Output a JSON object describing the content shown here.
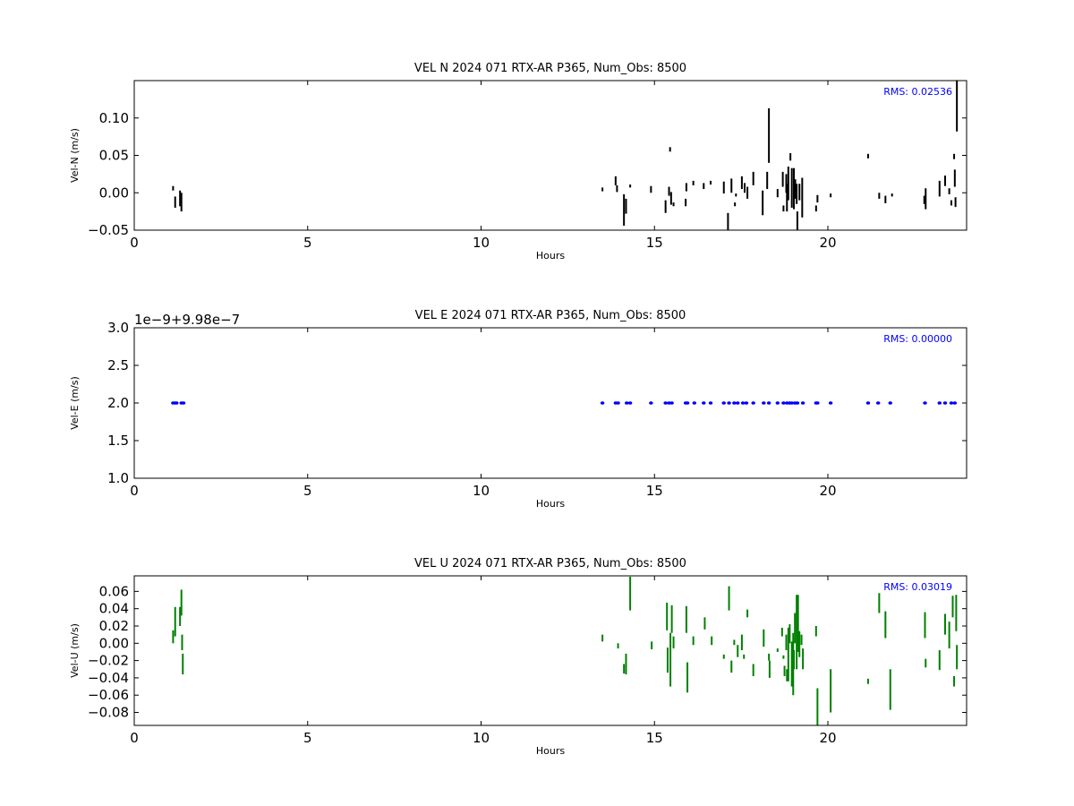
{
  "chart_data": [
    {
      "type": "scatter",
      "title": "VEL N 2024 071 RTX-AR  P365, Num_Obs: 8500",
      "xlabel": "Hours",
      "ylabel": "Vel-N (m/s)",
      "xlim": [
        0,
        24
      ],
      "ylim": [
        -0.05,
        0.15
      ],
      "xticks": [
        0,
        5,
        10,
        15,
        20
      ],
      "yticks": [
        -0.05,
        0.0,
        0.05,
        0.1
      ],
      "ytick_labels": [
        "−0.05",
        "0.00",
        "0.05",
        "0.10"
      ],
      "offset_text": "",
      "rms_label": "RMS:  0.02536",
      "color": "#000000",
      "grid": false,
      "segments": [
        [
          1.12,
          0.009,
          0.003
        ],
        [
          1.18,
          -0.005,
          -0.02
        ],
        [
          1.32,
          0.003,
          -0.018
        ],
        [
          1.36,
          0.0,
          -0.025
        ],
        [
          13.5,
          0.007,
          0.002
        ],
        [
          13.88,
          0.022,
          0.01
        ],
        [
          13.92,
          0.01,
          0.001
        ],
        [
          14.12,
          -0.002,
          -0.044
        ],
        [
          14.18,
          -0.008,
          -0.028
        ],
        [
          14.3,
          0.011,
          0.007
        ],
        [
          14.9,
          0.009,
          0.0
        ],
        [
          15.32,
          -0.01,
          -0.027
        ],
        [
          15.42,
          0.008,
          -0.004
        ],
        [
          15.45,
          0.061,
          0.055
        ],
        [
          15.48,
          0.001,
          -0.016
        ],
        [
          15.55,
          -0.013,
          -0.018
        ],
        [
          15.92,
          0.013,
          0.002
        ],
        [
          15.9,
          -0.008,
          -0.018
        ],
        [
          16.12,
          0.016,
          0.01
        ],
        [
          16.42,
          0.013,
          0.005
        ],
        [
          16.62,
          0.016,
          0.011
        ],
        [
          17.0,
          0.015,
          -0.001
        ],
        [
          17.12,
          -0.027,
          -0.05
        ],
        [
          17.22,
          0.019,
          0.0
        ],
        [
          17.32,
          -0.013,
          -0.018
        ],
        [
          17.35,
          -0.001,
          -0.005
        ],
        [
          17.52,
          0.022,
          0.005
        ],
        [
          17.6,
          0.013,
          0.0
        ],
        [
          17.68,
          0.008,
          -0.008
        ],
        [
          17.85,
          0.028,
          0.01
        ],
        [
          18.12,
          0.003,
          -0.03
        ],
        [
          18.25,
          0.028,
          0.005
        ],
        [
          18.3,
          0.113,
          0.04
        ],
        [
          18.55,
          0.005,
          -0.006
        ],
        [
          18.7,
          0.028,
          0.008
        ],
        [
          18.72,
          -0.017,
          -0.025
        ],
        [
          18.8,
          0.025,
          0.0
        ],
        [
          18.82,
          0.012,
          -0.025
        ],
        [
          18.86,
          0.035,
          -0.01
        ],
        [
          18.92,
          0.053,
          0.043
        ],
        [
          18.96,
          0.033,
          -0.02
        ],
        [
          19.02,
          0.033,
          -0.022
        ],
        [
          19.06,
          0.018,
          -0.008
        ],
        [
          19.1,
          0.012,
          -0.015
        ],
        [
          19.12,
          -0.025,
          -0.052
        ],
        [
          19.18,
          0.012,
          -0.01
        ],
        [
          19.26,
          0.02,
          -0.033
        ],
        [
          19.66,
          -0.017,
          -0.025
        ],
        [
          19.7,
          -0.003,
          -0.013
        ],
        [
          20.08,
          -0.001,
          -0.006
        ],
        [
          21.16,
          0.052,
          0.046
        ],
        [
          21.48,
          0.0,
          -0.008
        ],
        [
          21.66,
          -0.004,
          -0.014
        ],
        [
          21.85,
          -0.001,
          -0.005
        ],
        [
          22.78,
          -0.004,
          -0.015
        ],
        [
          22.82,
          0.006,
          -0.022
        ],
        [
          23.22,
          0.016,
          -0.005
        ],
        [
          23.38,
          0.023,
          0.009
        ],
        [
          23.5,
          0.006,
          -0.002
        ],
        [
          23.56,
          -0.01,
          -0.017
        ],
        [
          23.64,
          0.052,
          0.045
        ],
        [
          23.66,
          0.031,
          0.008
        ],
        [
          23.68,
          -0.006,
          -0.019
        ],
        [
          23.72,
          0.15,
          0.082
        ]
      ]
    },
    {
      "type": "scatter",
      "title": "VEL E 2024 071 RTX-AR  P365, Num_Obs: 8500",
      "xlabel": "Hours",
      "ylabel": "Vel-E (m/s)",
      "xlim": [
        0,
        24
      ],
      "ylim": [
        1.0,
        3.0
      ],
      "xticks": [
        0,
        5,
        10,
        15,
        20
      ],
      "yticks": [
        1.0,
        1.5,
        2.0,
        2.5,
        3.0
      ],
      "ytick_labels": [
        "1.0",
        "1.5",
        "2.0",
        "2.5",
        "3.0"
      ],
      "offset_text": "1e−9+9.98e−7",
      "rms_label": "RMS:  0.00000",
      "color": "#0000ff",
      "grid": false,
      "points_x": [
        1.12,
        1.18,
        1.22,
        1.36,
        1.42,
        13.5,
        13.88,
        13.95,
        14.2,
        14.3,
        14.9,
        15.32,
        15.42,
        15.5,
        15.9,
        15.95,
        16.15,
        16.42,
        16.62,
        17.0,
        17.15,
        17.3,
        17.4,
        17.55,
        17.65,
        17.85,
        18.15,
        18.3,
        18.55,
        18.72,
        18.82,
        18.9,
        18.96,
        19.05,
        19.12,
        19.28,
        19.66,
        19.7,
        20.08,
        21.16,
        21.45,
        21.8,
        22.8,
        23.22,
        23.38,
        23.56,
        23.66
      ],
      "points_y": 2.0
    },
    {
      "type": "scatter",
      "title": "VEL U 2024 071 RTX-AR  P365, Num_Obs: 8500",
      "xlabel": "Hours",
      "ylabel": "Vel-U (m/s)",
      "xlim": [
        0,
        24
      ],
      "ylim": [
        -0.095,
        0.078
      ],
      "xticks": [
        0,
        5,
        10,
        15,
        20
      ],
      "yticks": [
        -0.08,
        -0.06,
        -0.04,
        -0.02,
        0.0,
        0.02,
        0.04,
        0.06
      ],
      "ytick_labels": [
        "−0.08",
        "−0.06",
        "−0.04",
        "−0.02",
        "0.00",
        "0.02",
        "0.04",
        "0.06"
      ],
      "offset_text": "",
      "rms_label": "RMS:  0.03019",
      "color": "#008000",
      "grid": false,
      "segments": [
        [
          1.12,
          0.015,
          0.0
        ],
        [
          1.18,
          0.042,
          0.008
        ],
        [
          1.32,
          0.042,
          0.02
        ],
        [
          1.36,
          0.062,
          0.032
        ],
        [
          1.38,
          0.01,
          -0.008
        ],
        [
          1.4,
          -0.012,
          -0.036
        ],
        [
          13.5,
          0.01,
          0.002
        ],
        [
          13.95,
          0.0,
          -0.006
        ],
        [
          14.12,
          -0.024,
          -0.035
        ],
        [
          14.18,
          -0.012,
          -0.036
        ],
        [
          14.3,
          0.077,
          0.038
        ],
        [
          14.92,
          0.002,
          -0.007
        ],
        [
          15.36,
          0.047,
          0.015
        ],
        [
          15.38,
          -0.005,
          -0.034
        ],
        [
          15.46,
          0.012,
          -0.05
        ],
        [
          15.5,
          0.044,
          0.012
        ],
        [
          15.55,
          0.008,
          -0.006
        ],
        [
          15.92,
          0.043,
          0.012
        ],
        [
          15.95,
          -0.022,
          -0.057
        ],
        [
          16.12,
          0.008,
          -0.002
        ],
        [
          16.45,
          0.03,
          0.016
        ],
        [
          16.65,
          0.008,
          -0.002
        ],
        [
          17.0,
          -0.013,
          -0.018
        ],
        [
          17.15,
          0.066,
          0.038
        ],
        [
          17.22,
          -0.02,
          -0.034
        ],
        [
          17.3,
          0.004,
          -0.002
        ],
        [
          17.4,
          -0.002,
          -0.016
        ],
        [
          17.52,
          0.01,
          -0.008
        ],
        [
          17.58,
          -0.013,
          -0.018
        ],
        [
          17.68,
          0.039,
          0.03
        ],
        [
          17.85,
          -0.024,
          -0.038
        ],
        [
          18.15,
          0.016,
          -0.004
        ],
        [
          18.3,
          -0.012,
          -0.02
        ],
        [
          18.32,
          -0.02,
          -0.04
        ],
        [
          18.55,
          -0.006,
          -0.01
        ],
        [
          18.68,
          0.018,
          0.008
        ],
        [
          18.72,
          -0.014,
          -0.018
        ],
        [
          18.75,
          -0.026,
          -0.038
        ],
        [
          18.8,
          0.01,
          -0.008
        ],
        [
          18.82,
          -0.03,
          -0.044
        ],
        [
          18.86,
          0.018,
          -0.044
        ],
        [
          18.9,
          0.022,
          0.0
        ],
        [
          18.96,
          0.002,
          -0.05
        ],
        [
          19.0,
          0.012,
          -0.06
        ],
        [
          19.02,
          -0.008,
          -0.03
        ],
        [
          19.05,
          0.035,
          0.0
        ],
        [
          19.1,
          0.056,
          -0.03
        ],
        [
          19.14,
          0.056,
          -0.01
        ],
        [
          19.18,
          0.014,
          -0.016
        ],
        [
          19.24,
          0.01,
          -0.002
        ],
        [
          19.28,
          -0.006,
          -0.03
        ],
        [
          19.66,
          0.02,
          0.008
        ],
        [
          19.7,
          -0.052,
          -0.095
        ],
        [
          20.08,
          -0.03,
          -0.08
        ],
        [
          21.16,
          -0.041,
          -0.047
        ],
        [
          21.48,
          0.058,
          0.035
        ],
        [
          21.66,
          0.037,
          0.006
        ],
        [
          21.8,
          -0.03,
          -0.077
        ],
        [
          22.8,
          0.036,
          0.006
        ],
        [
          22.82,
          -0.018,
          -0.028
        ],
        [
          23.22,
          -0.008,
          -0.031
        ],
        [
          23.38,
          0.034,
          0.01
        ],
        [
          23.5,
          0.025,
          -0.006
        ],
        [
          23.6,
          0.055,
          0.03
        ],
        [
          23.64,
          -0.038,
          -0.05
        ],
        [
          23.7,
          0.056,
          0.014
        ],
        [
          23.72,
          -0.002,
          -0.03
        ]
      ]
    }
  ]
}
